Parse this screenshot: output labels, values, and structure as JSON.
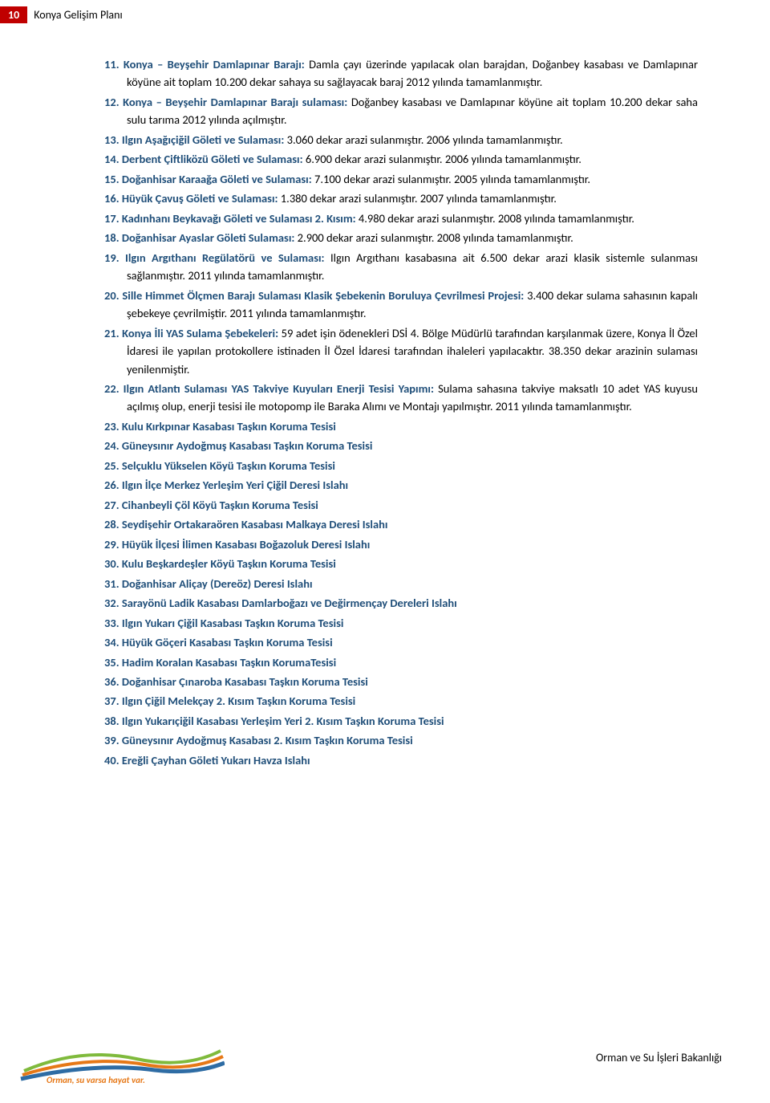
{
  "header": {
    "page_number": "10",
    "title": "Konya Gelişim Planı"
  },
  "colors": {
    "heading_blue": "#1f4e79",
    "page_box_red": "#c00000",
    "text_black": "#000000",
    "logo_orange": "#e67817",
    "logo_green": "#7fba3c",
    "logo_blue": "#2e6ca4"
  },
  "items": [
    {
      "n": "11.",
      "t": "Konya – Beyşehir Damlapınar Barajı:",
      "b": " Damla çayı üzerinde yapılacak olan barajdan, Doğanbey kasabası ve Damlapınar köyüne ait toplam 10.200 dekar sahaya su sağlayacak baraj 2012 yılında tamamlanmıştır."
    },
    {
      "n": "12.",
      "t": "Konya – Beyşehir Damlapınar Barajı sulaması:",
      "b": " Doğanbey kasabası ve Damlapınar köyüne ait toplam 10.200 dekar saha sulu tarıma 2012 yılında açılmıştır."
    },
    {
      "n": "13.",
      "t": "Ilgın Aşağıçiğil Göleti ve Sulaması:",
      "b": " 3.060 dekar arazi sulanmıştır. 2006 yılında tamamlanmıştır."
    },
    {
      "n": "14.",
      "t": "Derbent Çiftliközü Göleti ve Sulaması:",
      "b": " 6.900 dekar arazi sulanmıştır. 2006 yılında tamamlanmıştır."
    },
    {
      "n": "15.",
      "t": "Doğanhisar Karaağa Göleti ve Sulaması:",
      "b": " 7.100 dekar arazi sulanmıştır. 2005 yılında tamamlanmıştır."
    },
    {
      "n": "16.",
      "t": "Hüyük Çavuş Göleti ve Sulaması:",
      "b": " 1.380 dekar arazi sulanmıştır. 2007 yılında tamamlanmıştır."
    },
    {
      "n": "17.",
      "t": "Kadınhanı Beykavağı Göleti ve Sulaması 2. Kısım:",
      "b": " 4.980 dekar arazi sulanmıştır. 2008 yılında tamamlanmıştır."
    },
    {
      "n": "18.",
      "t": "Doğanhisar Ayaslar Göleti Sulaması:",
      "b": " 2.900 dekar arazi sulanmıştır. 2008 yılında tamamlanmıştır."
    },
    {
      "n": "19.",
      "t": "Ilgın Argıthanı Regülatörü ve Sulaması:",
      "b": " Ilgın Argıthanı kasabasına ait 6.500 dekar arazi klasik sistemle sulanması sağlanmıştır. 2011 yılında tamamlanmıştır."
    },
    {
      "n": "20.",
      "t": "Sille Himmet Ölçmen Barajı Sulaması Klasik Şebekenin Boruluya Çevrilmesi Projesi:",
      "b": " 3.400 dekar sulama sahasının kapalı şebekeye çevrilmiştir. 2011 yılında tamamlanmıştır."
    },
    {
      "n": "21.",
      "t": "Konya İli YAS Sulama Şebekeleri:",
      "b": " 59 adet işin ödenekleri DSİ 4. Bölge Müdürlü tarafından karşılanmak üzere, Konya İl Özel İdaresi ile yapılan protokollere istinaden İl Özel İdaresi tarafından ihaleleri yapılacaktır. 38.350 dekar arazinin sulaması yenilenmiştir."
    },
    {
      "n": "22.",
      "t": "Ilgın Atlantı Sulaması YAS Takviye Kuyuları Enerji Tesisi Yapımı:",
      "b": " Sulama sahasına takviye maksatlı 10 adet YAS kuyusu açılmış olup, enerji tesisi ile motopomp ile Baraka Alımı ve Montajı yapılmıştır. 2011 yılında tamamlanmıştır."
    },
    {
      "n": "23.",
      "t": "Kulu Kırkpınar Kasabası Taşkın Koruma Tesisi",
      "b": ""
    },
    {
      "n": "24.",
      "t": "Güneysınır Aydoğmuş Kasabası Taşkın Koruma Tesisi",
      "b": ""
    },
    {
      "n": "25.",
      "t": "Selçuklu Yükselen Köyü Taşkın Koruma Tesisi",
      "b": ""
    },
    {
      "n": "26.",
      "t": "Ilgın İlçe Merkez Yerleşim Yeri Çiğil Deresi Islahı",
      "b": ""
    },
    {
      "n": "27.",
      "t": "Cihanbeyli Çöl Köyü Taşkın Koruma Tesisi",
      "b": ""
    },
    {
      "n": "28.",
      "t": "Seydişehir Ortakaraören Kasabası Malkaya Deresi Islahı",
      "b": ""
    },
    {
      "n": "29.",
      "t": "Hüyük İlçesi İlimen Kasabası Boğazoluk Deresi Islahı",
      "b": ""
    },
    {
      "n": "30.",
      "t": "Kulu Beşkardeşler Köyü Taşkın Koruma Tesisi",
      "b": ""
    },
    {
      "n": "31.",
      "t": "Doğanhisar Aliçay (Dereöz) Deresi Islahı",
      "b": ""
    },
    {
      "n": "32.",
      "t": "Sarayönü Ladik Kasabası Damlarboğazı ve Değirmençay Dereleri Islahı",
      "b": ""
    },
    {
      "n": "33.",
      "t": "Ilgın Yukarı Çiğil Kasabası Taşkın Koruma Tesisi",
      "b": ""
    },
    {
      "n": "34.",
      "t": "Hüyük Göçeri Kasabası Taşkın Koruma Tesisi",
      "b": ""
    },
    {
      "n": "35.",
      "t": "Hadim Koralan Kasabası Taşkın KorumaTesisi",
      "b": ""
    },
    {
      "n": "36.",
      "t": "Doğanhisar Çınaroba Kasabası Taşkın Koruma Tesisi",
      "b": ""
    },
    {
      "n": "37.",
      "t": "Ilgın Çiğil Melekçay 2. Kısım Taşkın Koruma Tesisi",
      "b": ""
    },
    {
      "n": "38.",
      "t": "Ilgın Yukarıçiğil Kasabası Yerleşim Yeri 2. Kısım Taşkın Koruma Tesisi",
      "b": ""
    },
    {
      "n": "39.",
      "t": "Güneysınır Aydoğmuş Kasabası 2. Kısım Taşkın Koruma Tesisi",
      "b": ""
    },
    {
      "n": "40.",
      "t": "Ereğli Çayhan Göleti Yukarı Havza Islahı",
      "b": ""
    }
  ],
  "footer": {
    "right_text": "Orman ve Su İşleri Bakanlığı",
    "logo_text": "Orman, su varsa hayat var."
  }
}
